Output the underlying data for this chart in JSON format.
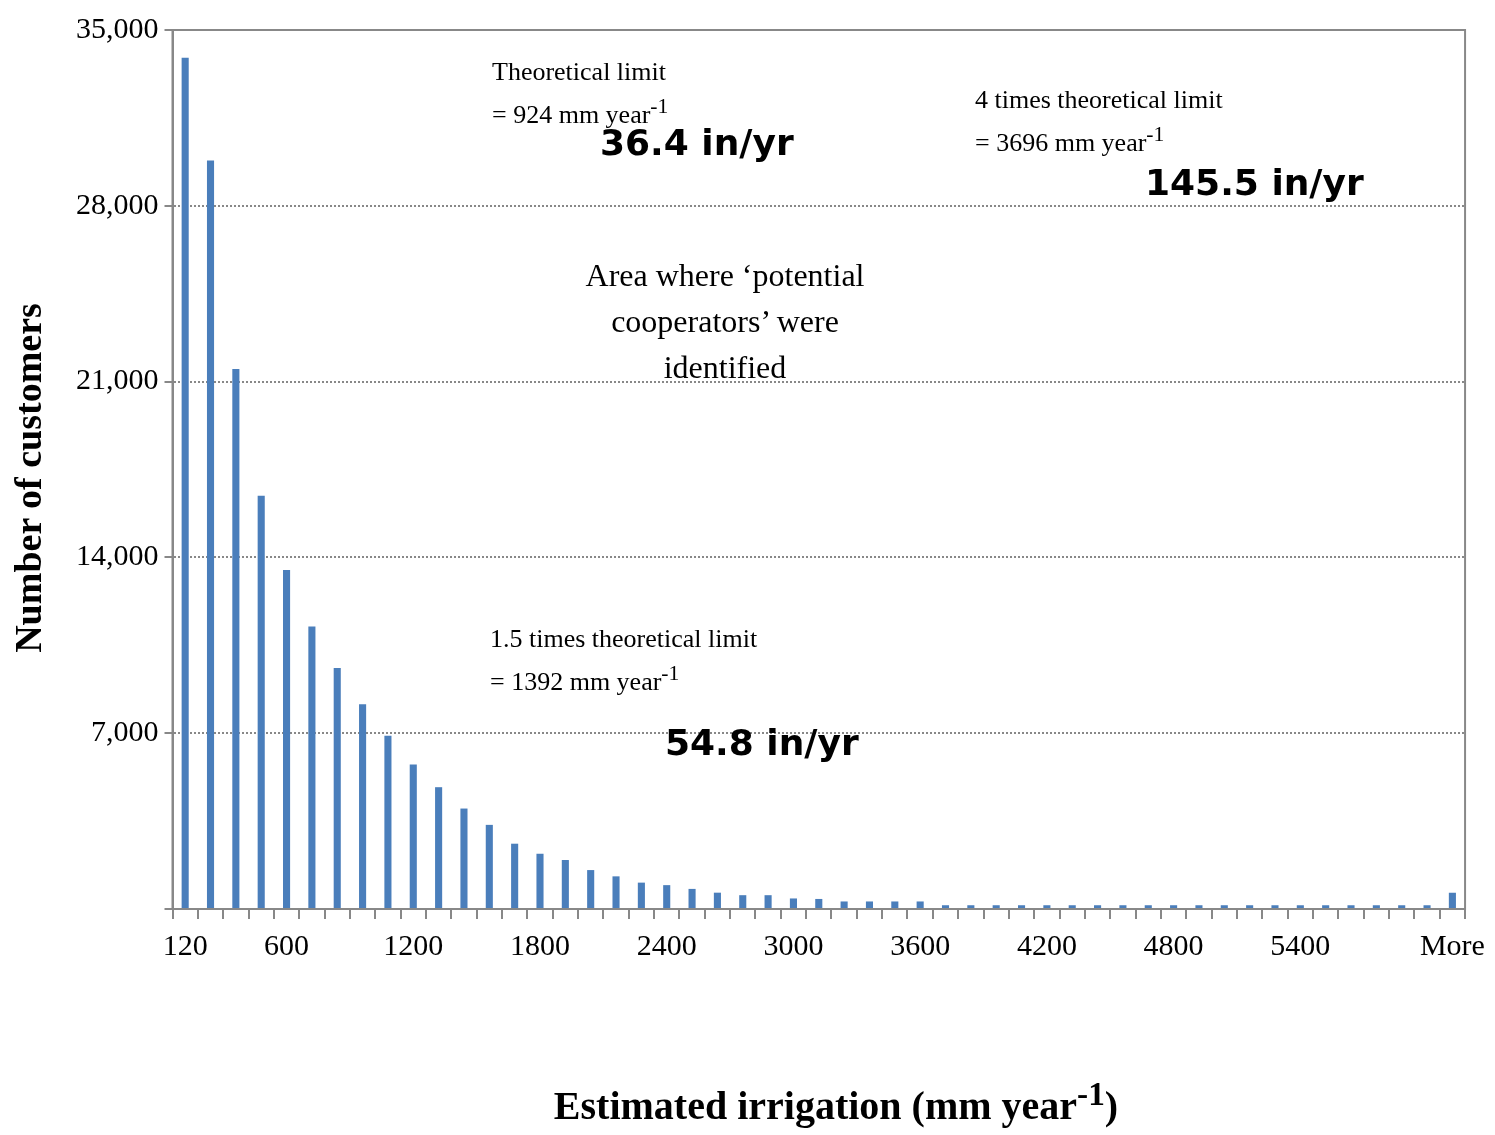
{
  "chart_data": {
    "type": "bar",
    "xlabel": "Estimated irrigation (mm year$^{-1}$)",
    "ylabel": "Number of customers",
    "categories": [
      "120",
      null,
      null,
      null,
      "600",
      null,
      null,
      null,
      null,
      "1200",
      null,
      null,
      null,
      null,
      "1800",
      null,
      null,
      null,
      null,
      "2400",
      null,
      null,
      null,
      null,
      "3000",
      null,
      null,
      null,
      null,
      "3600",
      null,
      null,
      null,
      null,
      "4200",
      null,
      null,
      null,
      null,
      "4800",
      null,
      null,
      null,
      null,
      "5400",
      null,
      null,
      null,
      null,
      null,
      "More"
    ],
    "values": [
      33900,
      29800,
      21500,
      16450,
      13500,
      11250,
      9600,
      8150,
      6900,
      5750,
      4850,
      4000,
      3350,
      2600,
      2200,
      1950,
      1550,
      1300,
      1050,
      950,
      800,
      650,
      550,
      550,
      420,
      400,
      300,
      300,
      300,
      300,
      150,
      150,
      150,
      150,
      150,
      150,
      150,
      150,
      150,
      150,
      150,
      150,
      150,
      150,
      150,
      150,
      150,
      150,
      150,
      150,
      650
    ],
    "color": "#4a7ebb",
    "ylim": [
      0,
      35000
    ],
    "yticks": [
      {
        "value": 0,
        "label": null
      },
      {
        "value": 7000,
        "label": "7,000"
      },
      {
        "value": 14000,
        "label": "14,000"
      },
      {
        "value": 21000,
        "label": "21,000"
      },
      {
        "value": 28000,
        "label": "28,000"
      },
      {
        "value": 35000,
        "label": "35,000"
      }
    ],
    "grid": "y",
    "legend": false,
    "annotations": [
      "Theoretical limit\n= 924 mm year$^{-1}$",
      "36.4 in/yr",
      "4 times theoretical limit\n= 3696 mm year$^{-1}$",
      "145.5 in/yr",
      "Area where ‘potential\ncooperators’ were\nidentified",
      "1.5 times theoretical limit\n= 1392 mm year$^{-1}$",
      "54.8 in/yr"
    ]
  }
}
